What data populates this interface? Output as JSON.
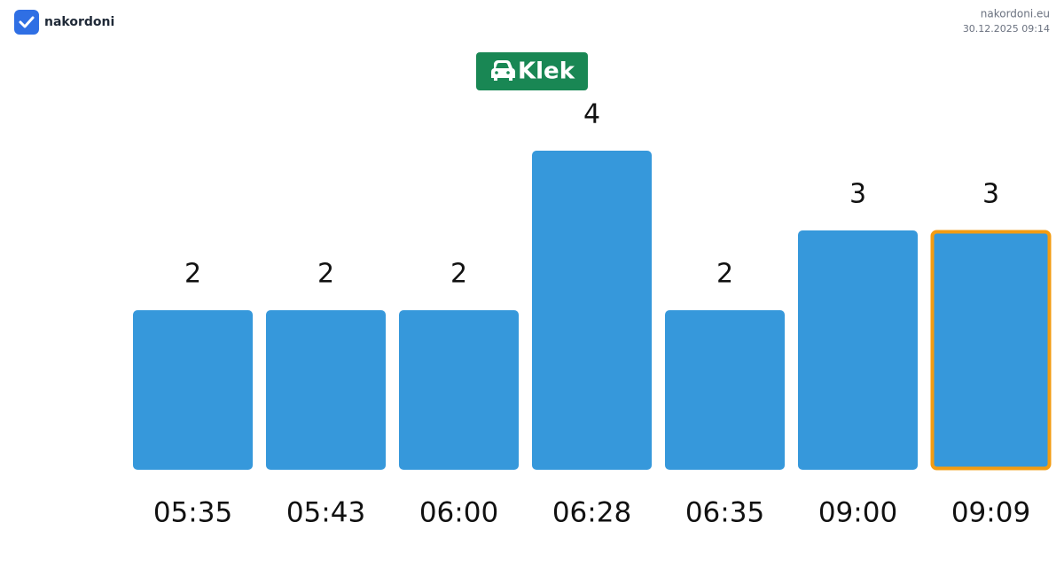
{
  "header": {
    "brand": "nakordoni",
    "site": "nakordoni.eu",
    "timestamp": "30.12.2025 09:14"
  },
  "chart_data": {
    "type": "bar",
    "title": "Klek",
    "title_color": "#198754",
    "categories": [
      "05:35",
      "05:43",
      "06:00",
      "06:28",
      "06:35",
      "09:00",
      "09:09"
    ],
    "values": [
      2,
      2,
      2,
      4,
      2,
      3,
      3
    ],
    "color": "#3698db",
    "highlight": {
      "category": "09:09",
      "color": "#f39c12"
    }
  }
}
